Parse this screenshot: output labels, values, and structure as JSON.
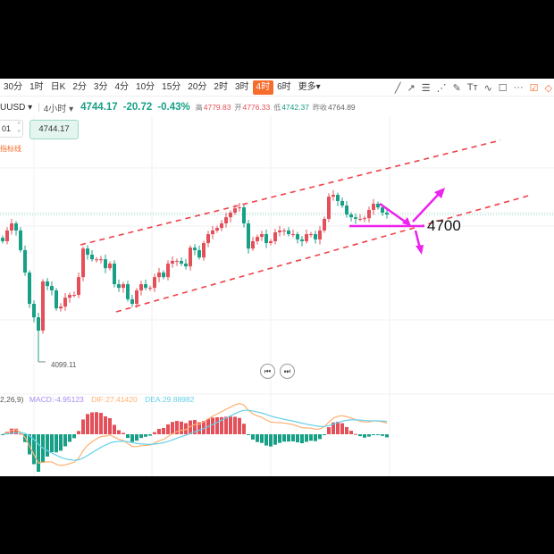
{
  "toolbar": {
    "timeframes": [
      "30分",
      "1时",
      "日K",
      "2分",
      "3分",
      "4分",
      "10分",
      "15分",
      "20分",
      "2时",
      "3时",
      "4时",
      "6时",
      "更多▾"
    ],
    "active": "4时",
    "tools": [
      {
        "icon": "line-icon",
        "g": "╱"
      },
      {
        "icon": "ray-icon",
        "g": "↗"
      },
      {
        "icon": "parallel-channel-icon",
        "g": "☰"
      },
      {
        "icon": "fan-icon",
        "g": "⋰"
      },
      {
        "icon": "pen-icon",
        "g": "✎"
      },
      {
        "icon": "text-icon",
        "g": "Tт"
      },
      {
        "icon": "wave-icon",
        "g": "∿"
      },
      {
        "icon": "rectangle-icon",
        "g": "☐"
      },
      {
        "icon": "more-icon",
        "g": "···"
      },
      {
        "icon": "edit-icon",
        "g": "☑"
      },
      {
        "icon": "eraser-icon",
        "g": "◇"
      }
    ]
  },
  "quote": {
    "symbol": "UUSD ▾",
    "period": "4小时 ▾",
    "price": "4744.17",
    "change": "-20.72",
    "pct": "-0.43%",
    "high_label": "高",
    "high": "4779.83",
    "open_label": "开",
    "open": "4776.33",
    "low_label": "低",
    "low": "4742.37",
    "prev_label": "昨收",
    "prev": "4764.89"
  },
  "stepper_value": "01",
  "price_box": "4744.17",
  "indicator_link": "指标线",
  "macd": {
    "params": "2,26,9)",
    "macd": "MACD:-4.95123",
    "dif": "DIF:27.41420",
    "dea": "DEA:29.88982"
  },
  "annotation": "4700",
  "colors": {
    "up": "#e4505a",
    "down": "#18a086",
    "accent": "#f56c2d",
    "drawing": "#ee22ee",
    "channel": "#f0404a",
    "dif": "#ffb070",
    "dea": "#66d0e8",
    "macd": "#a58cf0"
  },
  "chart_data": {
    "type": "candlestick",
    "last_price": 4744.17,
    "min_low": 4099.11,
    "min_label": "4099.11",
    "close": [
      4627,
      4674,
      4705,
      4674,
      4588,
      4490,
      4353,
      4294,
      4236,
      4451,
      4431,
      4412,
      4333,
      4341,
      4380,
      4392,
      4392,
      4470,
      4595,
      4568,
      4548,
      4548,
      4548,
      4509,
      4529,
      4439,
      4423,
      4439,
      4373,
      4353,
      4412,
      4439,
      4423,
      4423,
      4470,
      4490,
      4470,
      4529,
      4541,
      4541,
      4529,
      4517,
      4599,
      4588,
      4556,
      4619,
      4658,
      4674,
      4685,
      4705,
      4732,
      4752,
      4771,
      4775,
      4705,
      4595,
      4627,
      4646,
      4658,
      4619,
      4627,
      4666,
      4674,
      4674,
      4658,
      4658,
      4635,
      4627,
      4658,
      4658,
      4635,
      4674,
      4725,
      4822,
      4830,
      4803,
      4783,
      4744,
      4732,
      4725,
      4725,
      4728,
      4764,
      4791,
      4775,
      4752,
      4744
    ],
    "channel_level": 4700
  }
}
